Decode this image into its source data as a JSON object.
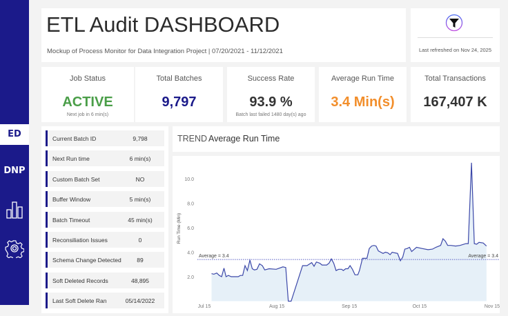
{
  "sidebar": {
    "items": [
      {
        "label": "ED",
        "selected": true
      },
      {
        "label": "DNP"
      },
      {
        "icon": "bar-chart-icon"
      },
      {
        "icon": "gear-icon"
      }
    ]
  },
  "header": {
    "title": "ETL Audit DASHBOARD",
    "subtitle": "Mockup of Process Monitor for Data Integration Project | 07/20/2021  -  11/12/2021"
  },
  "refresh": {
    "icon": "filter-icon",
    "text": "Last refreshed on Nov 24, 2025"
  },
  "kpis": [
    {
      "label": "Job Status",
      "value": "ACTIVE",
      "sub": "Next job in 6 min(s)",
      "color": "#4a9e48"
    },
    {
      "label": "Total Batches",
      "value": "9,797",
      "sub": "",
      "color": "#1b1a8a"
    },
    {
      "label": "Success Rate",
      "value": "93.9 %",
      "sub": "Batch last failed 1480 day(s) ago",
      "color": "#333333"
    },
    {
      "label": "Average Run Time",
      "value": "3.4 Min(s)",
      "sub": "",
      "color": "#f28e2b"
    },
    {
      "label": "Total Transactions",
      "value": "167,407 K",
      "sub": "",
      "color": "#333333"
    }
  ],
  "details": [
    {
      "key": "Current Batch ID",
      "value": "9,798"
    },
    {
      "key": "Next Run time",
      "value": "6 min(s)"
    },
    {
      "key": "Custom Batch Set",
      "value": "NO"
    },
    {
      "key": "Buffer Window",
      "value": "5 min(s)"
    },
    {
      "key": "Batch Timeout",
      "value": "45 min(s)"
    },
    {
      "key": "Reconsiliation Issues",
      "value": "0"
    },
    {
      "key": "Schema Change Detected",
      "value": "89"
    },
    {
      "key": "Soft Deleted Records",
      "value": "48,895"
    },
    {
      "key": "Last Soft Delete Ran",
      "value": "05/14/2022"
    }
  ],
  "chart_title": {
    "prefix": "TREND",
    "main": "Average Run Time"
  },
  "chart_data": {
    "type": "area",
    "title": "TREND Average Run Time",
    "ylabel": "Run Time (Min)",
    "xlabel": "",
    "x_unit": "days since Jul 15",
    "ylim": [
      0,
      11.5
    ],
    "yticks": [
      {
        "v": 2,
        "label": "2.0"
      },
      {
        "v": 4,
        "label": "4.0"
      },
      {
        "v": 6,
        "label": "6.0"
      },
      {
        "v": 8,
        "label": "8.0"
      },
      {
        "v": 10,
        "label": "10.0"
      }
    ],
    "xticks": [
      {
        "d": 0,
        "label": "Jul 15"
      },
      {
        "d": 31,
        "label": "Aug 15"
      },
      {
        "d": 62,
        "label": "Sep 15"
      },
      {
        "d": 92,
        "label": "Oct 15"
      },
      {
        "d": 123,
        "label": "Nov 15"
      }
    ],
    "reference_line": {
      "value": 3.4,
      "label": "Average = 3.4"
    },
    "x": [
      3.1,
      4.1,
      5.3,
      6.4,
      7.4,
      8.4,
      9.3,
      10.3,
      11.5,
      14.5,
      15.4,
      16.4,
      17.4,
      18.4,
      19.5,
      20.5,
      21.4,
      22.5,
      23.6,
      24.8,
      25.8,
      27.7,
      30.7,
      33.6,
      34.8,
      35.9,
      37.1,
      42,
      43.9,
      45.9,
      46.9,
      47.9,
      49.4,
      50.3,
      52.3,
      53.3,
      54.3,
      55.3,
      56.3,
      57.4,
      58.7,
      59.4,
      60.4,
      61.4,
      62.3,
      63.3,
      64.4,
      65.6,
      66.3,
      67.6,
      69.5,
      70.5,
      71.5,
      72.5,
      73.4,
      74.4,
      75.4,
      76.4,
      77.4,
      78.4,
      79.4,
      80.3,
      81.3,
      82.6,
      83.8,
      84.8,
      85.7,
      86.7,
      87.7,
      88.6,
      90.7,
      93.1,
      95.6,
      97.5,
      99,
      101,
      102,
      103,
      104,
      105.4,
      107.4,
      109.3,
      111.8,
      112.8,
      114.2,
      115.4,
      116.4,
      117.4,
      119.2,
      120.6
    ],
    "y": [
      2.25,
      2.2,
      2.3,
      2.1,
      2.0,
      2.7,
      2.0,
      2.1,
      2.0,
      2.0,
      2.1,
      2.1,
      2.9,
      2.5,
      3.35,
      2.65,
      2.55,
      2.6,
      3.05,
      2.9,
      2.55,
      2.65,
      2.6,
      2.8,
      2.75,
      0.0,
      0.0,
      2.9,
      2.9,
      3.15,
      2.85,
      3.2,
      3.1,
      2.95,
      2.95,
      3.1,
      3.45,
      3.1,
      2.5,
      2.6,
      2.6,
      2.5,
      2.65,
      2.65,
      2.9,
      2.6,
      2.15,
      2.15,
      2.5,
      3.5,
      3.5,
      4.3,
      4.5,
      4.55,
      4.5,
      4.1,
      4.0,
      3.9,
      4.0,
      3.95,
      3.8,
      4.0,
      3.95,
      3.9,
      3.3,
      3.6,
      4.25,
      4.3,
      4.4,
      4.05,
      4.4,
      4.3,
      4.2,
      4.25,
      4.4,
      4.55,
      5.1,
      4.9,
      4.55,
      4.55,
      4.5,
      4.55,
      4.7,
      4.7,
      11.3,
      4.7,
      4.65,
      4.8,
      4.75,
      4.5
    ],
    "colors": {
      "line": "#3b47a8",
      "fill": "#e6f0f8",
      "reference": "#5a5fc4"
    }
  }
}
